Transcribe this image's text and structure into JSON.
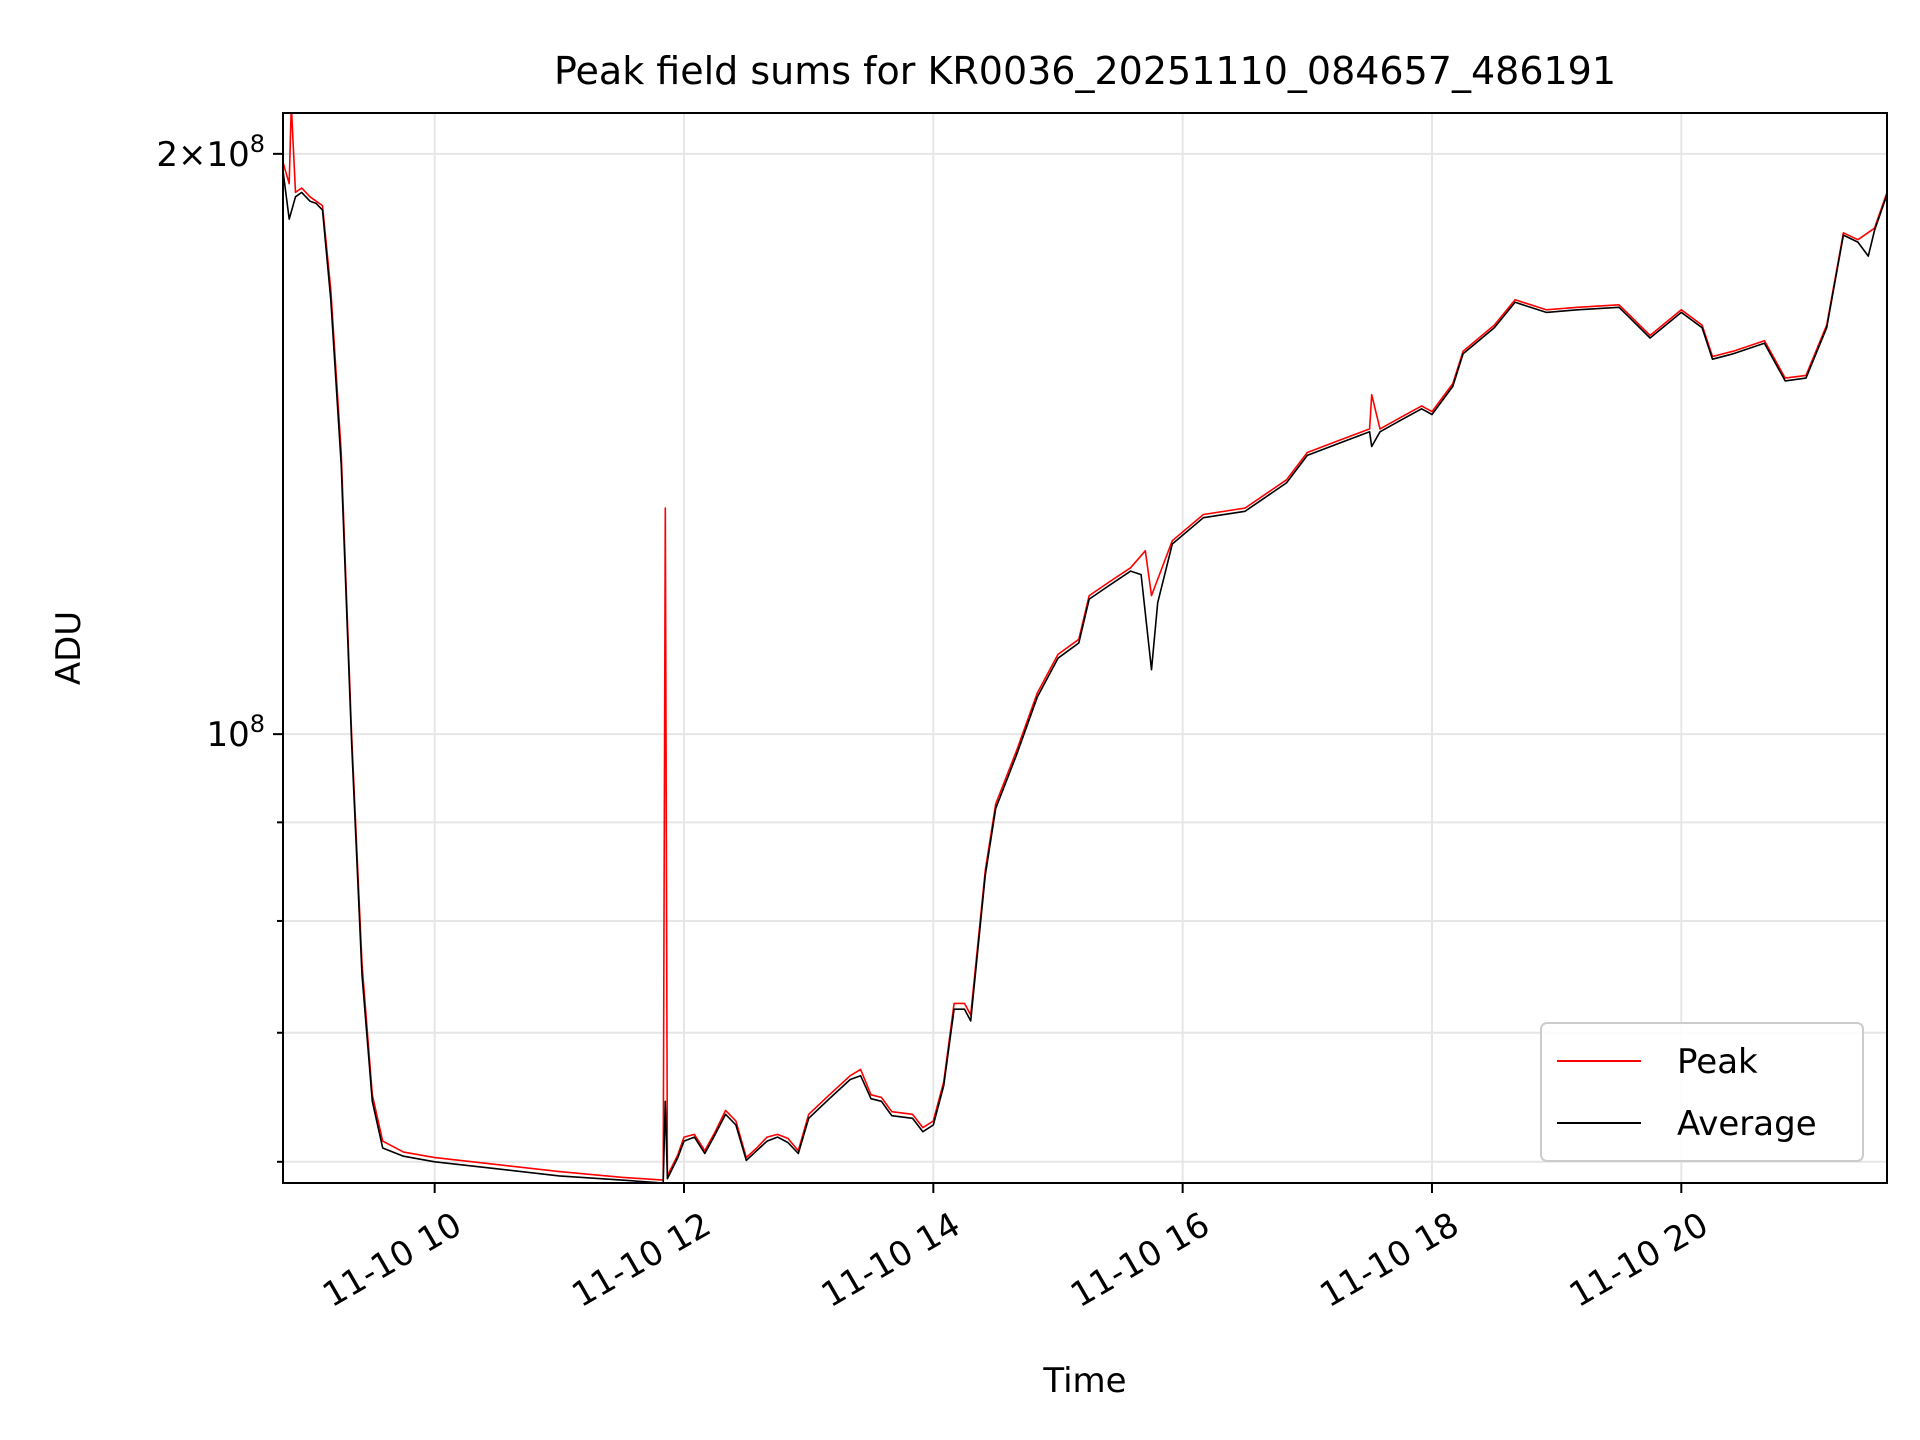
{
  "chart_data": {
    "type": "line",
    "title": "Peak field sums for KR0036_20251110_084657_486191",
    "xlabel": "Time",
    "ylabel": "ADU",
    "yscale": "log",
    "xlim": [
      "2025-11-10 08:47",
      "2025-11-10 21:39"
    ],
    "ylim": [
      58500000,
      210000000
    ],
    "xticks": [
      "11-10 10",
      "11-10 12",
      "11-10 14",
      "11-10 16",
      "11-10 18",
      "11-10 20"
    ],
    "xtick_times": [
      "2025-11-10 10:00",
      "2025-11-10 12:00",
      "2025-11-10 14:00",
      "2025-11-10 16:00",
      "2025-11-10 18:00",
      "2025-11-10 20:00"
    ],
    "yticks_major": [
      {
        "value": 100000000,
        "label": "10^8"
      },
      {
        "value": 200000000,
        "label": "2×10^8"
      }
    ],
    "yticks_minor": [
      60000000,
      70000000,
      80000000,
      90000000
    ],
    "grid": true,
    "legend_position": "lower-right",
    "series": [
      {
        "name": "Peak",
        "color": "#ff0000",
        "points": [
          [
            "2025-11-10 08:47",
            198000000
          ],
          [
            "2025-11-10 08:50",
            193000000
          ],
          [
            "2025-11-10 08:51",
            212000000
          ],
          [
            "2025-11-10 08:53",
            191000000
          ],
          [
            "2025-11-10 08:56",
            192000000
          ],
          [
            "2025-11-10 09:00",
            190000000
          ],
          [
            "2025-11-10 09:03",
            189000000
          ],
          [
            "2025-11-10 09:06",
            188000000
          ],
          [
            "2025-11-10 09:10",
            170000000
          ],
          [
            "2025-11-10 09:15",
            140000000
          ],
          [
            "2025-11-10 09:20",
            100000000
          ],
          [
            "2025-11-10 09:25",
            76000000
          ],
          [
            "2025-11-10 09:30",
            65000000
          ],
          [
            "2025-11-10 09:35",
            61500000
          ],
          [
            "2025-11-10 09:45",
            60700000
          ],
          [
            "2025-11-10 10:00",
            60300000
          ],
          [
            "2025-11-10 10:30",
            59800000
          ],
          [
            "2025-11-10 11:00",
            59300000
          ],
          [
            "2025-11-10 11:30",
            58900000
          ],
          [
            "2025-11-10 11:50",
            58700000
          ],
          [
            "2025-11-10 11:51",
            131000000
          ],
          [
            "2025-11-10 11:52",
            59000000
          ],
          [
            "2025-11-10 11:57",
            60500000
          ],
          [
            "2025-11-10 12:00",
            61800000
          ],
          [
            "2025-11-10 12:05",
            62000000
          ],
          [
            "2025-11-10 12:10",
            60800000
          ],
          [
            "2025-11-10 12:15",
            62200000
          ],
          [
            "2025-11-10 12:20",
            63800000
          ],
          [
            "2025-11-10 12:25",
            63000000
          ],
          [
            "2025-11-10 12:30",
            60300000
          ],
          [
            "2025-11-10 12:35",
            61000000
          ],
          [
            "2025-11-10 12:40",
            61800000
          ],
          [
            "2025-11-10 12:45",
            62000000
          ],
          [
            "2025-11-10 12:50",
            61700000
          ],
          [
            "2025-11-10 12:55",
            60800000
          ],
          [
            "2025-11-10 13:00",
            63500000
          ],
          [
            "2025-11-10 13:10",
            65000000
          ],
          [
            "2025-11-10 13:20",
            66500000
          ],
          [
            "2025-11-10 13:25",
            67000000
          ],
          [
            "2025-11-10 13:30",
            65000000
          ],
          [
            "2025-11-10 13:35",
            64800000
          ],
          [
            "2025-11-10 13:40",
            63700000
          ],
          [
            "2025-11-10 13:50",
            63500000
          ],
          [
            "2025-11-10 13:55",
            62500000
          ],
          [
            "2025-11-10 14:00",
            63000000
          ],
          [
            "2025-11-10 14:05",
            66000000
          ],
          [
            "2025-11-10 14:10",
            72500000
          ],
          [
            "2025-11-10 14:15",
            72500000
          ],
          [
            "2025-11-10 14:18",
            71500000
          ],
          [
            "2025-11-10 14:25",
            85000000
          ],
          [
            "2025-11-10 14:30",
            92000000
          ],
          [
            "2025-11-10 14:40",
            98000000
          ],
          [
            "2025-11-10 14:50",
            105000000
          ],
          [
            "2025-11-10 15:00",
            110000000
          ],
          [
            "2025-11-10 15:10",
            112000000
          ],
          [
            "2025-11-10 15:15",
            118000000
          ],
          [
            "2025-11-10 15:25",
            120000000
          ],
          [
            "2025-11-10 15:35",
            122000000
          ],
          [
            "2025-11-10 15:42",
            124500000
          ],
          [
            "2025-11-10 15:45",
            118000000
          ],
          [
            "2025-11-10 15:55",
            126000000
          ],
          [
            "2025-11-10 16:10",
            130000000
          ],
          [
            "2025-11-10 16:30",
            131000000
          ],
          [
            "2025-11-10 16:50",
            135500000
          ],
          [
            "2025-11-10 17:00",
            140000000
          ],
          [
            "2025-11-10 17:15",
            142000000
          ],
          [
            "2025-11-10 17:30",
            144000000
          ],
          [
            "2025-11-10 17:31",
            150000000
          ],
          [
            "2025-11-10 17:35",
            144000000
          ],
          [
            "2025-11-10 17:45",
            146000000
          ],
          [
            "2025-11-10 17:55",
            148000000
          ],
          [
            "2025-11-10 18:00",
            147000000
          ],
          [
            "2025-11-10 18:10",
            152000000
          ],
          [
            "2025-11-10 18:15",
            158000000
          ],
          [
            "2025-11-10 18:30",
            163000000
          ],
          [
            "2025-11-10 18:40",
            168000000
          ],
          [
            "2025-11-10 18:55",
            166000000
          ],
          [
            "2025-11-10 19:10",
            166500000
          ],
          [
            "2025-11-10 19:30",
            167000000
          ],
          [
            "2025-11-10 19:35",
            165000000
          ],
          [
            "2025-11-10 19:45",
            161000000
          ],
          [
            "2025-11-10 20:00",
            166000000
          ],
          [
            "2025-11-10 20:10",
            163000000
          ],
          [
            "2025-11-10 20:15",
            157000000
          ],
          [
            "2025-11-10 20:25",
            158000000
          ],
          [
            "2025-11-10 20:40",
            160000000
          ],
          [
            "2025-11-10 20:50",
            153000000
          ],
          [
            "2025-11-10 21:00",
            153500000
          ],
          [
            "2025-11-10 21:10",
            163000000
          ],
          [
            "2025-11-10 21:18",
            182000000
          ],
          [
            "2025-11-10 21:25",
            180500000
          ],
          [
            "2025-11-10 21:33",
            183000000
          ],
          [
            "2025-11-10 21:39",
            191000000
          ]
        ]
      },
      {
        "name": "Average",
        "color": "#000000",
        "points": [
          [
            "2025-11-10 08:47",
            196000000
          ],
          [
            "2025-11-10 08:50",
            185000000
          ],
          [
            "2025-11-10 08:53",
            190000000
          ],
          [
            "2025-11-10 08:56",
            191000000
          ],
          [
            "2025-11-10 09:00",
            189000000
          ],
          [
            "2025-11-10 09:03",
            188500000
          ],
          [
            "2025-11-10 09:06",
            187000000
          ],
          [
            "2025-11-10 09:10",
            168000000
          ],
          [
            "2025-11-10 09:15",
            138000000
          ],
          [
            "2025-11-10 09:20",
            99000000
          ],
          [
            "2025-11-10 09:25",
            75000000
          ],
          [
            "2025-11-10 09:30",
            64500000
          ],
          [
            "2025-11-10 09:35",
            61000000
          ],
          [
            "2025-11-10 09:45",
            60400000
          ],
          [
            "2025-11-10 10:00",
            60000000
          ],
          [
            "2025-11-10 10:30",
            59500000
          ],
          [
            "2025-11-10 11:00",
            59000000
          ],
          [
            "2025-11-10 11:30",
            58700000
          ],
          [
            "2025-11-10 11:50",
            58500000
          ],
          [
            "2025-11-10 11:51",
            64500000
          ],
          [
            "2025-11-10 11:52",
            58800000
          ],
          [
            "2025-11-10 11:57",
            60300000
          ],
          [
            "2025-11-10 12:00",
            61500000
          ],
          [
            "2025-11-10 12:05",
            61800000
          ],
          [
            "2025-11-10 12:10",
            60600000
          ],
          [
            "2025-11-10 12:15",
            62000000
          ],
          [
            "2025-11-10 12:20",
            63500000
          ],
          [
            "2025-11-10 12:25",
            62700000
          ],
          [
            "2025-11-10 12:30",
            60100000
          ],
          [
            "2025-11-10 12:35",
            60800000
          ],
          [
            "2025-11-10 12:40",
            61500000
          ],
          [
            "2025-11-10 12:45",
            61800000
          ],
          [
            "2025-11-10 12:50",
            61400000
          ],
          [
            "2025-11-10 12:55",
            60600000
          ],
          [
            "2025-11-10 13:00",
            63200000
          ],
          [
            "2025-11-10 13:10",
            64700000
          ],
          [
            "2025-11-10 13:20",
            66200000
          ],
          [
            "2025-11-10 13:25",
            66500000
          ],
          [
            "2025-11-10 13:30",
            64700000
          ],
          [
            "2025-11-10 13:35",
            64500000
          ],
          [
            "2025-11-10 13:40",
            63400000
          ],
          [
            "2025-11-10 13:50",
            63200000
          ],
          [
            "2025-11-10 13:55",
            62200000
          ],
          [
            "2025-11-10 14:00",
            62700000
          ],
          [
            "2025-11-10 14:05",
            65700000
          ],
          [
            "2025-11-10 14:10",
            72000000
          ],
          [
            "2025-11-10 14:15",
            72000000
          ],
          [
            "2025-11-10 14:18",
            71000000
          ],
          [
            "2025-11-10 14:25",
            84500000
          ],
          [
            "2025-11-10 14:30",
            91500000
          ],
          [
            "2025-11-10 14:40",
            97500000
          ],
          [
            "2025-11-10 14:50",
            104500000
          ],
          [
            "2025-11-10 15:00",
            109500000
          ],
          [
            "2025-11-10 15:10",
            111500000
          ],
          [
            "2025-11-10 15:15",
            117500000
          ],
          [
            "2025-11-10 15:25",
            119500000
          ],
          [
            "2025-11-10 15:35",
            121500000
          ],
          [
            "2025-11-10 15:40",
            121000000
          ],
          [
            "2025-11-10 15:45",
            108000000
          ],
          [
            "2025-11-10 15:48",
            117000000
          ],
          [
            "2025-11-10 15:55",
            125500000
          ],
          [
            "2025-11-10 16:10",
            129500000
          ],
          [
            "2025-11-10 16:30",
            130500000
          ],
          [
            "2025-11-10 16:50",
            135000000
          ],
          [
            "2025-11-10 17:00",
            139500000
          ],
          [
            "2025-11-10 17:15",
            141500000
          ],
          [
            "2025-11-10 17:30",
            143500000
          ],
          [
            "2025-11-10 17:31",
            141000000
          ],
          [
            "2025-11-10 17:35",
            143500000
          ],
          [
            "2025-11-10 17:45",
            145500000
          ],
          [
            "2025-11-10 17:55",
            147500000
          ],
          [
            "2025-11-10 18:00",
            146500000
          ],
          [
            "2025-11-10 18:10",
            151500000
          ],
          [
            "2025-11-10 18:15",
            157500000
          ],
          [
            "2025-11-10 18:30",
            162500000
          ],
          [
            "2025-11-10 18:40",
            167500000
          ],
          [
            "2025-11-10 18:55",
            165500000
          ],
          [
            "2025-11-10 19:10",
            166000000
          ],
          [
            "2025-11-10 19:30",
            166500000
          ],
          [
            "2025-11-10 19:35",
            164500000
          ],
          [
            "2025-11-10 19:45",
            160500000
          ],
          [
            "2025-11-10 20:00",
            165500000
          ],
          [
            "2025-11-10 20:10",
            162500000
          ],
          [
            "2025-11-10 20:15",
            156500000
          ],
          [
            "2025-11-10 20:25",
            157500000
          ],
          [
            "2025-11-10 20:40",
            159500000
          ],
          [
            "2025-11-10 20:50",
            152500000
          ],
          [
            "2025-11-10 21:00",
            153000000
          ],
          [
            "2025-11-10 21:10",
            162500000
          ],
          [
            "2025-11-10 21:18",
            181500000
          ],
          [
            "2025-11-10 21:25",
            180000000
          ],
          [
            "2025-11-10 21:30",
            177000000
          ],
          [
            "2025-11-10 21:33",
            182500000
          ],
          [
            "2025-11-10 21:39",
            190500000
          ]
        ]
      }
    ]
  }
}
